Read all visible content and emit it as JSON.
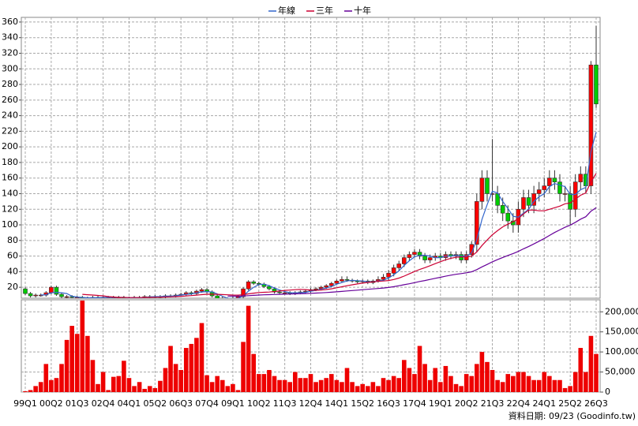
{
  "chart_data": {
    "type": "candlestick",
    "categories": [
      "99Q1",
      null,
      null,
      null,
      null,
      "00Q2",
      null,
      null,
      null,
      null,
      "01Q3",
      null,
      null,
      null,
      null,
      "02Q4",
      null,
      null,
      null,
      null,
      "04Q1",
      null,
      null,
      null,
      null,
      "05Q2",
      null,
      null,
      null,
      null,
      "06Q3",
      null,
      null,
      null,
      null,
      "07Q4",
      null,
      null,
      null,
      null,
      "09Q1",
      null,
      null,
      null,
      null,
      "10Q2",
      null,
      null,
      null,
      null,
      "11Q3",
      null,
      null,
      null,
      null,
      "12Q4",
      null,
      null,
      null,
      null,
      "14Q1",
      null,
      null,
      null,
      null,
      "15Q2",
      null,
      null,
      null,
      null,
      "16Q3",
      null,
      null,
      null,
      null,
      "17Q4",
      null,
      null,
      null,
      null,
      "19Q1",
      null,
      null,
      null,
      null,
      "20Q2",
      null,
      null,
      null,
      null,
      "21Q3",
      null,
      null,
      null,
      null,
      "22Q4",
      null,
      null,
      null,
      null,
      "24Q1",
      null,
      null,
      null,
      null,
      "25Q2",
      null,
      null,
      null,
      null,
      "26Q3"
    ],
    "open": [
      18,
      12,
      9,
      10,
      10,
      13,
      20,
      11,
      8,
      8,
      7,
      7,
      6,
      6,
      7,
      7,
      7,
      7,
      7,
      7,
      6,
      6,
      7,
      7,
      8,
      8,
      8,
      8,
      9,
      9,
      10,
      11,
      13,
      12,
      15,
      17,
      14,
      9,
      6,
      5,
      5,
      6,
      8,
      18,
      27,
      25,
      24,
      21,
      18,
      14,
      13,
      13,
      12,
      13,
      14,
      15,
      17,
      18,
      20,
      22,
      25,
      28,
      30,
      29,
      28,
      27,
      28,
      26,
      28,
      30,
      33,
      38,
      45,
      50,
      58,
      62,
      65,
      60,
      55,
      58,
      60,
      58,
      62,
      60,
      62,
      55,
      62,
      75,
      130,
      160,
      140,
      140,
      125,
      115,
      105,
      100,
      120,
      135,
      125,
      140,
      145,
      150,
      160,
      155,
      140,
      140,
      120,
      155,
      165,
      150,
      305
    ],
    "high": [
      20,
      14,
      12,
      12,
      15,
      22,
      22,
      13,
      10,
      10,
      9,
      9,
      8,
      9,
      9,
      9,
      9,
      9,
      9,
      9,
      8,
      9,
      9,
      10,
      10,
      10,
      10,
      11,
      11,
      12,
      13,
      15,
      15,
      17,
      19,
      19,
      16,
      11,
      8,
      7,
      8,
      10,
      20,
      29,
      29,
      27,
      26,
      23,
      20,
      16,
      15,
      15,
      15,
      16,
      17,
      19,
      20,
      22,
      24,
      27,
      30,
      34,
      34,
      31,
      30,
      30,
      30,
      30,
      34,
      37,
      42,
      49,
      54,
      62,
      66,
      69,
      69,
      64,
      62,
      64,
      64,
      66,
      66,
      66,
      66,
      66,
      79,
      140,
      170,
      170,
      210,
      150,
      135,
      125,
      115,
      130,
      145,
      145,
      150,
      155,
      160,
      170,
      170,
      165,
      150,
      150,
      165,
      175,
      175,
      310,
      355
    ],
    "low": [
      10,
      7,
      7,
      8,
      8,
      11,
      9,
      6,
      6,
      5,
      5,
      4,
      4,
      4,
      5,
      5,
      5,
      5,
      5,
      4,
      4,
      4,
      5,
      5,
      6,
      6,
      6,
      6,
      7,
      7,
      8,
      9,
      10,
      10,
      13,
      12,
      7,
      4,
      3,
      3,
      3,
      4,
      6,
      16,
      23,
      22,
      19,
      16,
      12,
      11,
      11,
      10,
      10,
      11,
      12,
      13,
      15,
      16,
      18,
      20,
      23,
      26,
      27,
      26,
      25,
      25,
      24,
      24,
      26,
      28,
      29,
      34,
      41,
      46,
      54,
      58,
      56,
      51,
      51,
      54,
      54,
      54,
      56,
      56,
      51,
      51,
      58,
      65,
      120,
      130,
      130,
      115,
      105,
      95,
      90,
      90,
      110,
      115,
      115,
      130,
      135,
      140,
      145,
      130,
      130,
      100,
      110,
      145,
      140,
      140,
      250
    ],
    "close": [
      12,
      9,
      10,
      10,
      13,
      20,
      11,
      8,
      8,
      7,
      7,
      6,
      6,
      7,
      7,
      7,
      7,
      7,
      7,
      6,
      6,
      7,
      7,
      8,
      8,
      8,
      8,
      9,
      9,
      10,
      11,
      13,
      12,
      15,
      17,
      14,
      9,
      6,
      5,
      5,
      6,
      8,
      18,
      27,
      25,
      24,
      21,
      18,
      14,
      13,
      13,
      12,
      13,
      14,
      15,
      17,
      18,
      20,
      22,
      25,
      28,
      30,
      29,
      28,
      27,
      28,
      26,
      28,
      30,
      33,
      38,
      45,
      50,
      58,
      62,
      65,
      60,
      55,
      58,
      60,
      58,
      62,
      60,
      62,
      55,
      62,
      75,
      130,
      160,
      140,
      140,
      125,
      115,
      105,
      100,
      120,
      135,
      125,
      140,
      145,
      150,
      160,
      155,
      140,
      140,
      120,
      155,
      165,
      150,
      305,
      255
    ],
    "up_color": "#ff0000",
    "down_color": "#00cc00",
    "series": [
      {
        "name": "年線",
        "color": "#3366cc",
        "values": [
          null,
          null,
          null,
          10,
          10.5,
          13,
          13.5,
          13,
          12,
          8.5,
          7.5,
          7,
          6.5,
          6.5,
          6.5,
          7,
          7,
          7,
          7,
          7,
          6.5,
          6.5,
          6.5,
          7,
          7.5,
          8,
          8,
          8.5,
          8.5,
          9,
          10,
          11,
          11.5,
          13,
          14,
          14.5,
          14,
          11.5,
          8.5,
          6,
          5.5,
          6,
          9,
          15,
          20,
          23.5,
          24,
          22,
          19,
          16.5,
          14.5,
          13,
          13,
          13,
          13.5,
          15,
          16,
          17.5,
          19,
          21,
          24,
          26,
          28,
          29,
          28.5,
          28,
          27,
          27,
          28,
          29,
          32,
          36,
          41,
          48,
          54,
          59,
          61,
          61,
          60,
          58,
          58,
          60,
          60,
          61,
          60,
          60,
          64,
          81,
          107,
          126,
          143,
          141,
          130,
          121,
          111,
          110,
          115,
          120,
          130,
          136,
          140,
          149,
          153,
          151,
          149,
          139,
          139,
          145,
          148,
          194,
          219
        ]
      },
      {
        "name": "三年",
        "color": "#cc0033",
        "values": [
          null,
          null,
          null,
          null,
          null,
          null,
          null,
          null,
          null,
          null,
          null,
          11,
          10.5,
          10,
          9.5,
          9,
          8,
          7.5,
          7,
          7,
          6.8,
          6.8,
          6.8,
          7,
          7,
          7.2,
          7.3,
          7.5,
          7.7,
          8,
          8.4,
          8.9,
          9.3,
          9.9,
          10.6,
          11.1,
          11.2,
          11,
          10.7,
          10.3,
          10,
          9.9,
          10.4,
          11.6,
          12.5,
          13.3,
          13.6,
          13.9,
          14.6,
          15.3,
          16,
          16.4,
          16.9,
          17.2,
          17,
          16.4,
          16.1,
          16.4,
          17.1,
          18,
          19.3,
          20.7,
          22,
          23.2,
          24.3,
          25.3,
          26.2,
          26.9,
          27.5,
          28,
          28.7,
          30,
          31.8,
          34.3,
          37.2,
          40.2,
          42.9,
          45.1,
          47.7,
          50.3,
          52.8,
          55.2,
          57.2,
          58.5,
          58.9,
          58.9,
          59.9,
          65.3,
          73.6,
          80.6,
          87.3,
          92.6,
          97.4,
          101,
          104,
          108,
          114,
          119,
          119,
          118,
          118,
          120,
          122,
          124,
          127,
          128,
          133,
          138,
          141,
          155,
          166
        ]
      },
      {
        "name": "十年",
        "color": "#660099",
        "values": [
          null,
          null,
          null,
          null,
          null,
          null,
          null,
          null,
          null,
          null,
          null,
          null,
          null,
          null,
          null,
          null,
          null,
          null,
          null,
          null,
          null,
          null,
          null,
          null,
          null,
          null,
          null,
          null,
          null,
          null,
          null,
          null,
          null,
          null,
          null,
          null,
          null,
          null,
          null,
          8.7,
          8.6,
          8.6,
          8.8,
          9.2,
          9.6,
          10,
          10.3,
          10.6,
          10.8,
          11,
          11.2,
          11.4,
          11.6,
          11.8,
          12,
          12.3,
          12.6,
          12.9,
          13.3,
          13.7,
          14.2,
          14.7,
          15.3,
          15.8,
          16.3,
          16.9,
          17.4,
          17.9,
          18.4,
          19,
          19.8,
          20.8,
          22,
          23.3,
          24.5,
          25.9,
          27.4,
          28.7,
          30.1,
          31.5,
          32.8,
          34.2,
          35.5,
          36.6,
          37.6,
          38.6,
          39.9,
          42.6,
          46.1,
          49.3,
          52.6,
          55.5,
          58.2,
          60.8,
          63.2,
          66,
          69.3,
          72.3,
          75.6,
          79,
          82.6,
          86.4,
          90.2,
          93.6,
          96.9,
          99.6,
          103.3,
          107.3,
          110.5,
          117.5,
          122
        ]
      }
    ],
    "volume": {
      "type": "bar",
      "axis": "y2",
      "color": "#ee0000",
      "values": [
        2000,
        5000,
        15000,
        25000,
        70000,
        30000,
        35000,
        70000,
        130000,
        165000,
        145000,
        228000,
        140000,
        80000,
        20000,
        50000,
        5000,
        38000,
        40000,
        78000,
        35000,
        15000,
        25000,
        8000,
        15000,
        10000,
        28000,
        60000,
        115000,
        70000,
        55000,
        110000,
        120000,
        135000,
        172000,
        42000,
        25000,
        40000,
        30000,
        15000,
        20000,
        5000,
        125000,
        215000,
        95000,
        45000,
        45000,
        55000,
        40000,
        30000,
        30000,
        25000,
        50000,
        35000,
        35000,
        45000,
        25000,
        30000,
        35000,
        45000,
        30000,
        25000,
        60000,
        25000,
        15000,
        20000,
        15000,
        25000,
        15000,
        35000,
        30000,
        40000,
        35000,
        80000,
        60000,
        45000,
        115000,
        70000,
        30000,
        60000,
        25000,
        65000,
        40000,
        20000,
        15000,
        45000,
        40000,
        70000,
        100000,
        75000,
        55000,
        30000,
        25000,
        45000,
        40000,
        50000,
        50000,
        40000,
        30000,
        30000,
        50000,
        40000,
        30000,
        30000,
        10000,
        15000,
        50000,
        110000,
        50000,
        140000,
        95000
      ]
    },
    "ylim": [
      6,
      366
    ],
    "yticks": [
      20,
      40,
      60,
      80,
      100,
      120,
      140,
      160,
      180,
      200,
      220,
      240,
      260,
      280,
      300,
      320,
      340,
      360
    ],
    "y2lim": [
      0,
      230000
    ],
    "y2ticks": [
      0,
      {
        "value": 50000,
        "label": "50,000"
      },
      {
        "value": 100000,
        "label": "100,000"
      },
      {
        "value": 150000,
        "label": "150,000"
      },
      {
        "value": 200000,
        "label": "200,000"
      }
    ],
    "grid": true,
    "legend": "top",
    "footnote": "資料日期: 09/23 (Goodinfo.tw)"
  }
}
